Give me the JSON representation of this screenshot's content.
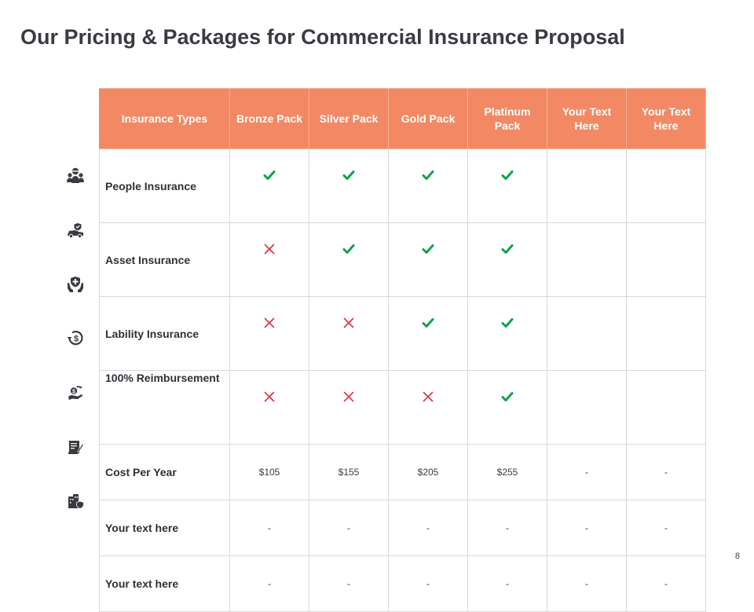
{
  "title": "Our Pricing & Packages for Commercial Insurance Proposal",
  "page_number": "8",
  "colors": {
    "header_bg": "#f38864",
    "check": "#14a04a",
    "cross": "#d9323f",
    "icon": "#3a3b42"
  },
  "table": {
    "headers": [
      "Insurance Types",
      "Bronze Pack",
      "Silver Pack",
      "Gold Pack",
      "Platinum Pack",
      "Your Text Here",
      "Your Text Here"
    ],
    "rows": [
      {
        "label": "People Insurance",
        "icon": "people-group-icon",
        "cells": [
          "check",
          "check",
          "check",
          "check",
          "",
          ""
        ]
      },
      {
        "label": "Asset Insurance",
        "icon": "car-shield-icon",
        "cells": [
          "cross",
          "check",
          "check",
          "check",
          "",
          ""
        ]
      },
      {
        "label": "Lability Insurance",
        "icon": "shield-hands-icon",
        "cells": [
          "cross",
          "cross",
          "check",
          "check",
          "",
          ""
        ]
      },
      {
        "label": "100% Reimbursement",
        "icon": "dollar-refund-icon",
        "cells": [
          "cross",
          "cross",
          "cross",
          "check",
          "",
          ""
        ]
      },
      {
        "label": "Cost Per Year",
        "icon": "hand-coin-icon",
        "cells": [
          "$105",
          "$155",
          "$205",
          "$255",
          "-",
          "-"
        ]
      },
      {
        "label": "Your text here",
        "icon": "document-pen-icon",
        "cells": [
          "-",
          "-",
          "-",
          "-",
          "-",
          "-"
        ]
      },
      {
        "label": "Your text here",
        "icon": "building-shield-icon",
        "cells": [
          "-",
          "-",
          "-",
          "-",
          "-",
          "-"
        ]
      }
    ]
  }
}
